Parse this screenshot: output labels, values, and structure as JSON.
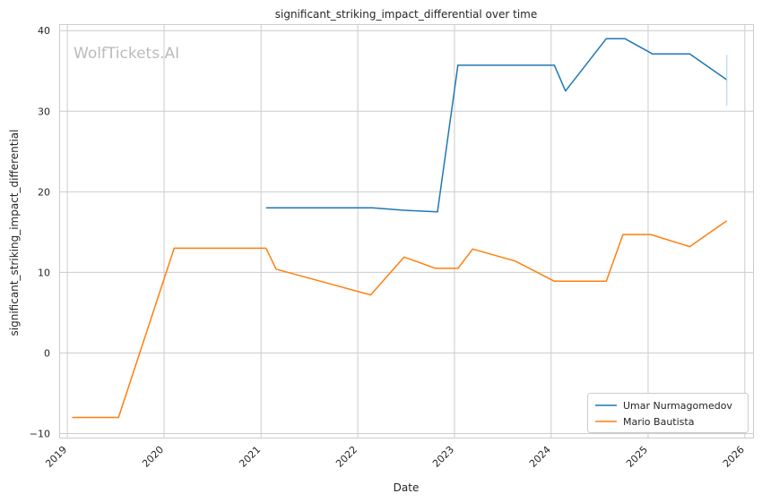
{
  "chart_data": {
    "type": "line",
    "title": "significant_striking_impact_differential over time",
    "xlabel": "Date",
    "ylabel": "significant_striking_impact_differential",
    "watermark": "WolfTickets.AI",
    "xlim": [
      "2018-12-01",
      "2026-02-01"
    ],
    "ylim": [
      -10.5,
      40.8
    ],
    "x_ticks": [
      "2019",
      "2020",
      "2021",
      "2022",
      "2023",
      "2024",
      "2025",
      "2026"
    ],
    "y_ticks": [
      -10,
      0,
      10,
      20,
      30,
      40
    ],
    "grid": true,
    "legend_position": "bottom-right",
    "series": [
      {
        "name": "Umar Nurmagomedov",
        "color": "#1f77b4",
        "points": [
          {
            "x": "2021-01-20",
            "y": 18.0
          },
          {
            "x": "2022-02-26",
            "y": 18.0
          },
          {
            "x": "2022-06-25",
            "y": 17.7
          },
          {
            "x": "2022-10-29",
            "y": 17.5
          },
          {
            "x": "2023-01-14",
            "y": 35.7
          },
          {
            "x": "2023-05-20",
            "y": 35.7
          },
          {
            "x": "2024-01-13",
            "y": 35.7
          },
          {
            "x": "2024-02-24",
            "y": 32.5
          },
          {
            "x": "2024-07-27",
            "y": 39.0
          },
          {
            "x": "2024-10-05",
            "y": 39.0
          },
          {
            "x": "2025-01-18",
            "y": 37.1
          },
          {
            "x": "2025-06-07",
            "y": 37.1
          },
          {
            "x": "2025-10-25",
            "y": 33.9
          }
        ],
        "spike": {
          "x": "2025-10-25",
          "y_low": 30.7,
          "y_high": 37.0
        }
      },
      {
        "name": "Mario Bautista",
        "color": "#ff7f0e",
        "points": [
          {
            "x": "2019-01-19",
            "y": -8.0
          },
          {
            "x": "2019-07-13",
            "y": -8.0
          },
          {
            "x": "2020-02-08",
            "y": 13.0
          },
          {
            "x": "2021-01-20",
            "y": 13.0
          },
          {
            "x": "2021-02-27",
            "y": 10.4
          },
          {
            "x": "2022-02-19",
            "y": 7.2
          },
          {
            "x": "2022-06-25",
            "y": 11.9
          },
          {
            "x": "2022-10-22",
            "y": 10.5
          },
          {
            "x": "2023-01-14",
            "y": 10.5
          },
          {
            "x": "2023-03-11",
            "y": 12.9
          },
          {
            "x": "2023-08-19",
            "y": 11.4
          },
          {
            "x": "2024-01-13",
            "y": 8.9
          },
          {
            "x": "2024-07-27",
            "y": 8.9
          },
          {
            "x": "2024-09-28",
            "y": 14.7
          },
          {
            "x": "2025-01-11",
            "y": 14.7
          },
          {
            "x": "2025-06-07",
            "y": 13.2
          },
          {
            "x": "2025-10-25",
            "y": 16.4
          }
        ]
      }
    ]
  }
}
